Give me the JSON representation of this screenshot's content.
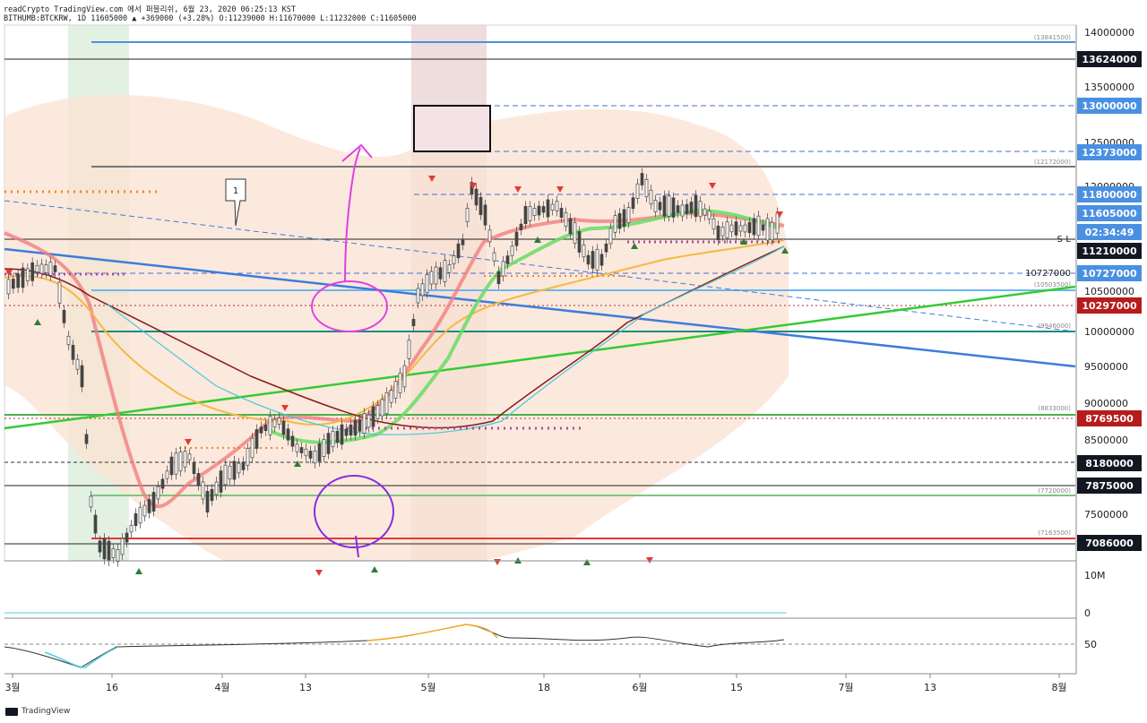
{
  "header": {
    "line1": "readCrypto TradingView.com 에서 퍼블리쉬, 6월 23, 2020 06:25:13 KST",
    "symbol_line": "BITHUMB:BTCKRW, 1D 11605000 ▲ +369000 (+3.28%) O:11239000 H:11670000 L:11232000 C:11605000"
  },
  "colors": {
    "accent_blue": "#2962ff",
    "up": "#26a69a",
    "down": "#ef5350",
    "label_black": "#131722",
    "label_blue": "#4a90e2",
    "label_red": "#b71c1c"
  },
  "price_axis": {
    "ticks": [
      "14000000",
      "13500000",
      "12500000",
      "12000000",
      "11000000",
      "10500000",
      "10000000",
      "9500000",
      "9000000",
      "8500000",
      "7500000"
    ],
    "labels": [
      {
        "text": "13624000",
        "style": "black"
      },
      {
        "text": "13000000",
        "style": "blue"
      },
      {
        "text": "12373000",
        "style": "blue"
      },
      {
        "text": "11800000",
        "style": "blue"
      },
      {
        "text": "11605000",
        "style": "blue"
      },
      {
        "text": "02:34:49",
        "style": "blue"
      },
      {
        "text": "11210000",
        "style": "black"
      },
      {
        "text": "10727000",
        "style": "blue"
      },
      {
        "text": "10297000",
        "style": "red"
      },
      {
        "text": "8769500",
        "style": "red"
      },
      {
        "text": "8180000",
        "style": "black"
      },
      {
        "text": "7875000",
        "style": "black"
      },
      {
        "text": "7086000",
        "style": "black"
      }
    ]
  },
  "line_annotations": [
    "(13841500)",
    "(12172000)",
    "(10503500)",
    "(9946000)",
    "(8833000)",
    "(7720000)",
    "(7163500)"
  ],
  "text_annotations": {
    "sl": "S-L",
    "level_10727000": "10727000",
    "callout": "1"
  },
  "volume_axis": {
    "ticks": [
      "10M",
      "0"
    ]
  },
  "rsi_axis": {
    "ticks": [
      "50"
    ]
  },
  "time_axis": {
    "labels": [
      "3월",
      "16",
      "4월",
      "13",
      "5월",
      "18",
      "6월",
      "15",
      "7월",
      "13",
      "8월"
    ]
  },
  "footer": {
    "brand": "TradingView"
  }
}
